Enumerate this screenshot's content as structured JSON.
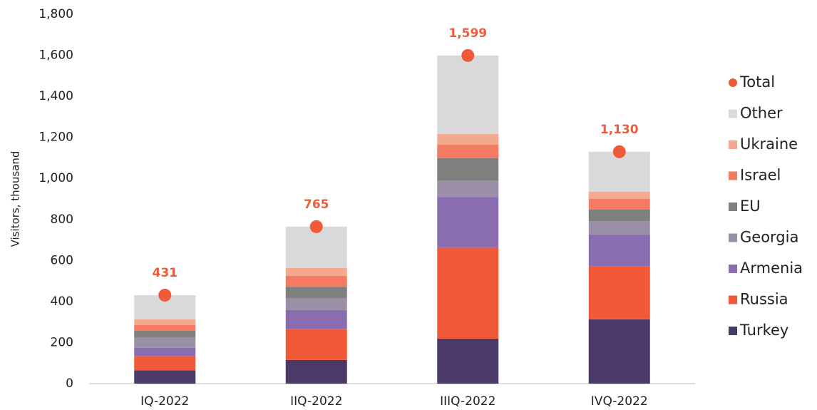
{
  "chart_data": {
    "type": "bar",
    "stacked": true,
    "y_label": "Visitors, thousand",
    "categories": [
      "IQ-2022",
      "IIQ-2022",
      "IIIQ-2022",
      "IVQ-2022"
    ],
    "series": [
      {
        "name": "Turkey",
        "color": "#4b3a68",
        "values": [
          65,
          115,
          219,
          313
        ]
      },
      {
        "name": "Russia",
        "color": "#f05a38",
        "values": [
          70,
          152,
          445,
          260
        ]
      },
      {
        "name": "Armenia",
        "color": "#8a6db1",
        "values": [
          39,
          91,
          246,
          153
        ]
      },
      {
        "name": "Georgia",
        "color": "#9b8fa8",
        "values": [
          52,
          59,
          80,
          66
        ]
      },
      {
        "name": "EU",
        "color": "#7f7f7f",
        "values": [
          31,
          55,
          108,
          56
        ]
      },
      {
        "name": "Israel",
        "color": "#f47a62",
        "values": [
          28,
          53,
          66,
          52
        ]
      },
      {
        "name": "Ukraine",
        "color": "#f4a98e",
        "values": [
          28,
          38,
          52,
          35
        ]
      },
      {
        "name": "Other",
        "color": "#d9d9d9",
        "values": [
          118,
          202,
          383,
          195
        ]
      },
      {
        "name": "Total",
        "color": "#f05a38",
        "marker": "circle",
        "values": [
          431,
          765,
          1599,
          1130
        ],
        "value_labels": [
          "431",
          "765",
          "1,599",
          "1,130"
        ]
      }
    ],
    "ylim": [
      0,
      1800
    ],
    "yticks": [
      0,
      200,
      400,
      600,
      800,
      {
        "value": 1000,
        "label": "1,000"
      },
      {
        "value": 1200,
        "label": "1,200"
      },
      {
        "value": 1400,
        "label": "1,400"
      },
      {
        "value": 1600,
        "label": "1,600"
      },
      {
        "value": 1800,
        "label": "1,800"
      }
    ],
    "grid": false,
    "legend": "right"
  }
}
